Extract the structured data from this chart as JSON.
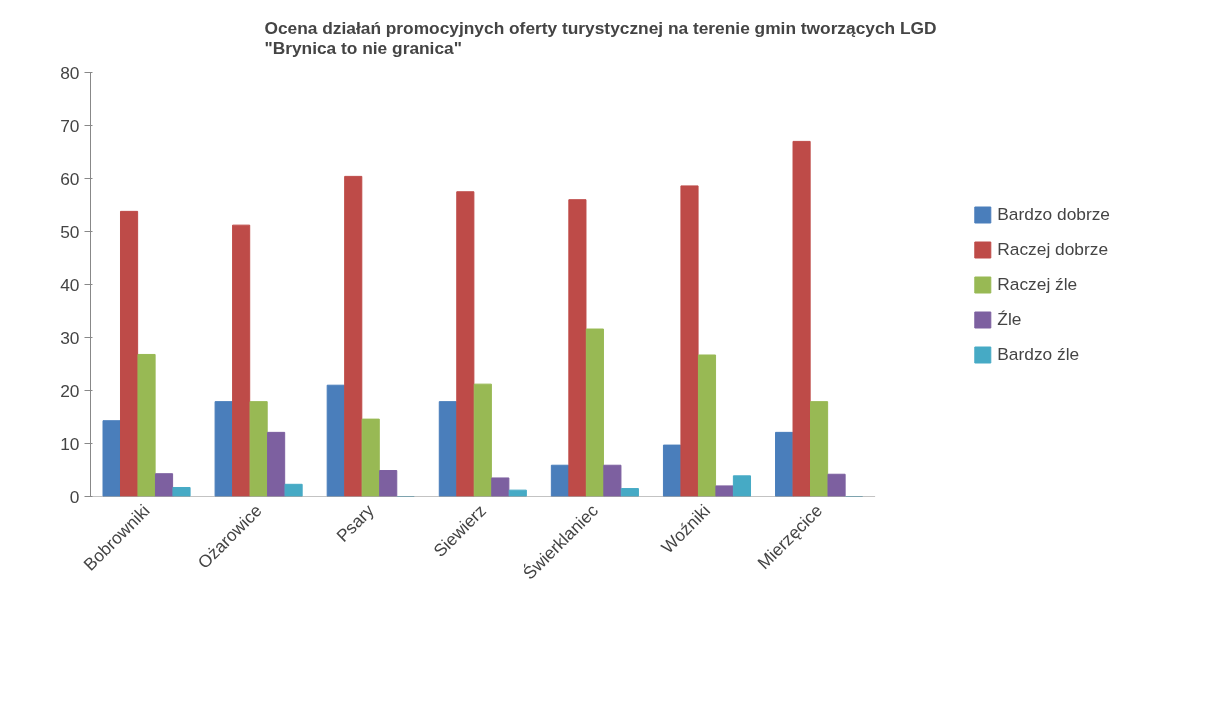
{
  "chart_data": {
    "type": "bar",
    "title": "Ocena działań promocyjnych oferty turystycznej na terenie gmin tworzących LGD\n\"Brynica to nie granica\"",
    "categories": [
      "Bobrowniki",
      "Ożarowice",
      "Psary",
      "Siewierz",
      "Świerklaniec",
      "Woźniki",
      "Mierzęcice"
    ],
    "series": [
      {
        "name": "Bardzo dobrze",
        "color": "#4a7ebb",
        "values": [
          14.3,
          17.9,
          21,
          17.9,
          5.9,
          9.7,
          12.1
        ]
      },
      {
        "name": "Raczej dobrze",
        "color": "#be4b48",
        "values": [
          53.8,
          51.2,
          60.4,
          57.5,
          56,
          58.6,
          67
        ]
      },
      {
        "name": "Raczej źle",
        "color": "#98b954",
        "values": [
          26.8,
          17.9,
          14.6,
          21.2,
          31.6,
          26.7,
          17.9
        ]
      },
      {
        "name": "Źle",
        "color": "#7d60a0",
        "values": [
          4.3,
          12.1,
          4.9,
          3.5,
          5.9,
          2,
          4.2
        ]
      },
      {
        "name": "Bardzo źle",
        "color": "#46aac5",
        "values": [
          1.7,
          2.3,
          0,
          1.2,
          1.5,
          3.9,
          0
        ]
      }
    ],
    "ylim": [
      0,
      80
    ],
    "yticks": [
      0,
      10,
      20,
      30,
      40,
      50,
      60,
      70,
      80
    ],
    "grid": false,
    "legend": "right"
  }
}
